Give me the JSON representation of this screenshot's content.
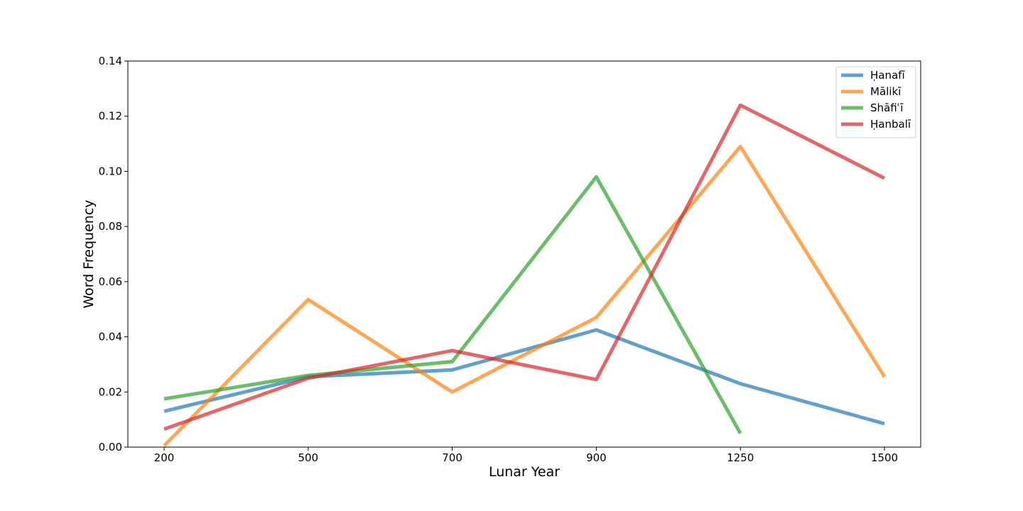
{
  "chart_data": {
    "type": "line",
    "title": "",
    "xlabel": "Lunar Year",
    "ylabel": "Word Frequency",
    "categories": [
      "200",
      "500",
      "700",
      "900",
      "1250",
      "1500"
    ],
    "ylim": [
      0,
      0.14
    ],
    "yticks": [
      "0.00",
      "0.02",
      "0.04",
      "0.06",
      "0.08",
      "0.10",
      "0.12",
      "0.14"
    ],
    "grid": false,
    "legend_position": "top-right",
    "series": [
      {
        "name": "Ḥanafī",
        "color": "#1f77b4",
        "values": [
          0.013,
          0.0255,
          0.028,
          0.0425,
          0.023,
          0.0085
        ]
      },
      {
        "name": "Mālikī",
        "color": "#ff7f0e",
        "values": [
          0.0005,
          0.0535,
          0.02,
          0.047,
          0.109,
          0.0255
        ]
      },
      {
        "name": "Shāfiʿī",
        "color": "#2ca02c",
        "values": [
          0.0175,
          0.026,
          0.031,
          0.098,
          0.005,
          null
        ]
      },
      {
        "name": "Ḥanbalī",
        "color": "#d62728",
        "values": [
          0.0065,
          0.025,
          0.035,
          0.0245,
          0.124,
          0.0975
        ]
      }
    ]
  }
}
